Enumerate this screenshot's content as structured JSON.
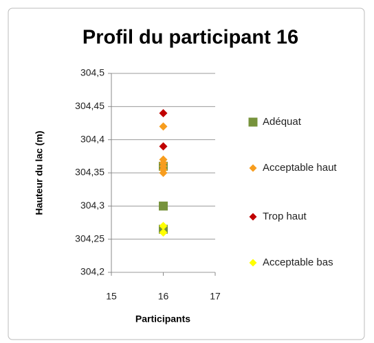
{
  "chart_data": {
    "type": "scatter",
    "title": "Profil du participant 16",
    "x_label": "Participants",
    "y_label": "Hauteur du lac (m)",
    "xlim": [
      15,
      17
    ],
    "xticks": [
      15,
      16,
      17
    ],
    "ylim": [
      304.2,
      304.5
    ],
    "yticks": [
      {
        "value": 304.2,
        "label": "304,2"
      },
      {
        "value": 304.25,
        "label": "304,25"
      },
      {
        "value": 304.3,
        "label": "304,3"
      },
      {
        "value": 304.35,
        "label": "304,35"
      },
      {
        "value": 304.4,
        "label": "304,4"
      },
      {
        "value": 304.45,
        "label": "304,45"
      },
      {
        "value": 304.5,
        "label": "304,5"
      }
    ],
    "grid": true,
    "legend": "right",
    "series": [
      {
        "name": "Adéquat",
        "color": "#77933c",
        "marker": "square",
        "x": [
          16,
          16,
          16
        ],
        "values": [
          304.3,
          304.265,
          304.36
        ]
      },
      {
        "name": "Acceptable haut",
        "color": "#f79d1e",
        "marker": "diamond",
        "x": [
          16,
          16,
          16,
          16,
          16,
          16
        ],
        "values": [
          304.42,
          304.37,
          304.365,
          304.36,
          304.355,
          304.35
        ]
      },
      {
        "name": "Trop haut",
        "color": "#c00000",
        "marker": "diamond",
        "x": [
          16,
          16
        ],
        "values": [
          304.44,
          304.39
        ]
      },
      {
        "name": "Acceptable bas",
        "color": "#ffff00",
        "marker": "diamond",
        "x": [
          16,
          16
        ],
        "values": [
          304.27,
          304.26
        ]
      }
    ]
  }
}
